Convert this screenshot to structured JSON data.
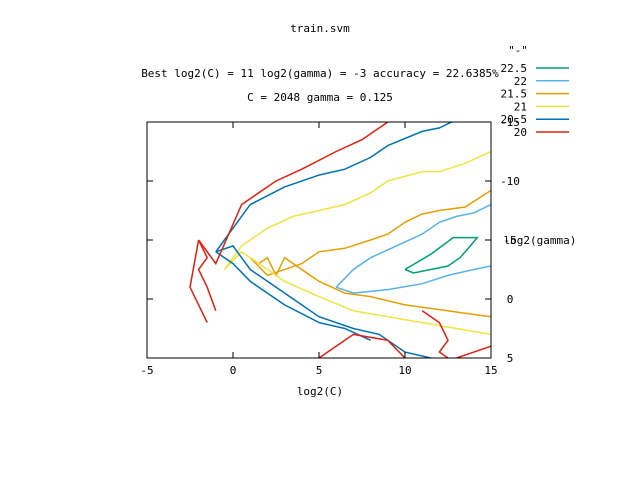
{
  "chart_data": {
    "type": "contour",
    "title": "train.svm",
    "subtitle_lines": [
      "Best log2(C) = 11  log2(gamma) = -3  accuracy = 22.6385%",
      "C = 2048  gamma = 0.125"
    ],
    "xlabel": "log2(C)",
    "ylabel": "log2(gamma)",
    "xlim": [
      -5,
      15
    ],
    "ylim": [
      -15,
      5
    ],
    "y_reversed": true,
    "x_ticks": [
      -5,
      0,
      5,
      10,
      15
    ],
    "x_tick_labels": [
      "-5",
      "0",
      "5",
      "10",
      "15"
    ],
    "y_ticks": [
      -15,
      -10,
      -5,
      0,
      5
    ],
    "y_tick_labels": [
      "-15",
      "-10",
      "-5",
      "0",
      "5"
    ],
    "legend_title": "\"-\"",
    "legend_position": "top-right",
    "grid": false,
    "series": [
      {
        "name": "22.5",
        "color": "#009e73",
        "paths": [
          [
            [
              10,
              -2.5
            ],
            [
              11.5,
              -3.8
            ],
            [
              12.8,
              -5.2
            ],
            [
              14.2,
              -5.2
            ],
            [
              13.8,
              -4.5
            ],
            [
              13.2,
              -3.5
            ],
            [
              12.5,
              -2.8
            ],
            [
              10.5,
              -2.2
            ],
            [
              10,
              -2.5
            ]
          ]
        ]
      },
      {
        "name": "22",
        "color": "#56b4e9",
        "paths": [
          [
            [
              6,
              -1
            ],
            [
              7,
              -2.5
            ],
            [
              8,
              -3.5
            ],
            [
              9.5,
              -4.5
            ],
            [
              11,
              -5.5
            ],
            [
              12,
              -6.5
            ],
            [
              13,
              -7
            ],
            [
              14,
              -7.3
            ],
            [
              15,
              -8
            ]
          ],
          [
            [
              6,
              -1
            ],
            [
              7,
              -0.5
            ],
            [
              9,
              -0.8
            ],
            [
              11,
              -1.3
            ],
            [
              12.5,
              -2
            ],
            [
              14,
              -2.5
            ],
            [
              15,
              -2.8
            ]
          ]
        ]
      },
      {
        "name": "21.5",
        "color": "#e69f00",
        "paths": [
          [
            [
              1,
              -3.5
            ],
            [
              2,
              -2
            ],
            [
              4,
              -3
            ],
            [
              5,
              -4
            ],
            [
              6.5,
              -4.3
            ],
            [
              8,
              -5
            ],
            [
              9,
              -5.5
            ],
            [
              10,
              -6.5
            ],
            [
              11,
              -7.2
            ],
            [
              12,
              -7.5
            ],
            [
              13.5,
              -7.8
            ],
            [
              15,
              -9.2
            ]
          ],
          [
            [
              1,
              -3.5
            ],
            [
              1.5,
              -3
            ],
            [
              2,
              -3.5
            ],
            [
              2.5,
              -2
            ],
            [
              3,
              -3.5
            ],
            [
              5,
              -1.5
            ],
            [
              6.5,
              -0.5
            ],
            [
              8,
              -0.2
            ],
            [
              10,
              0.5
            ],
            [
              12,
              0.9
            ],
            [
              13.5,
              1.2
            ],
            [
              15,
              1.5
            ]
          ]
        ]
      },
      {
        "name": "21",
        "color": "#f0e442",
        "paths": [
          [
            [
              -0.5,
              -2.5
            ],
            [
              0.5,
              -4.5
            ],
            [
              2,
              -6
            ],
            [
              3.5,
              -7
            ],
            [
              5,
              -7.5
            ],
            [
              6.5,
              -8
            ],
            [
              8,
              -9
            ],
            [
              9,
              -10
            ],
            [
              11,
              -10.8
            ],
            [
              12,
              -10.8
            ],
            [
              13.5,
              -11.5
            ],
            [
              15,
              -12.5
            ]
          ],
          [
            [
              -0.5,
              -2.5
            ],
            [
              0.5,
              -4
            ],
            [
              2,
              -2.5
            ],
            [
              3,
              -1.5
            ],
            [
              5,
              -0.2
            ],
            [
              7,
              1
            ],
            [
              9,
              1.5
            ],
            [
              11,
              2
            ],
            [
              13,
              2.5
            ],
            [
              15,
              3
            ]
          ]
        ]
      },
      {
        "name": "20.5",
        "color": "#0072b2",
        "paths": [
          [
            [
              -1,
              -4
            ],
            [
              -0.5,
              -5
            ],
            [
              0,
              -6
            ],
            [
              1,
              -8
            ],
            [
              3,
              -9.5
            ],
            [
              5,
              -10.5
            ],
            [
              6.5,
              -11
            ],
            [
              8,
              -12
            ],
            [
              9,
              -13
            ],
            [
              11,
              -14.2
            ],
            [
              12,
              -14.5
            ],
            [
              13,
              -15.2
            ],
            [
              15,
              -17
            ]
          ],
          [
            [
              -1,
              -4
            ],
            [
              0,
              -4.5
            ],
            [
              1,
              -2.5
            ],
            [
              2,
              -1.5
            ],
            [
              3.5,
              0
            ],
            [
              5,
              1.5
            ],
            [
              7,
              2.5
            ],
            [
              8.5,
              3
            ],
            [
              10,
              4.5
            ],
            [
              11.5,
              5
            ]
          ],
          [
            [
              -1,
              -4
            ],
            [
              0,
              -3
            ],
            [
              1,
              -1.5
            ],
            [
              2,
              -0.5
            ],
            [
              3,
              0.5
            ],
            [
              5,
              2
            ],
            [
              6.5,
              2.5
            ],
            [
              8,
              3.5
            ]
          ]
        ]
      },
      {
        "name": "20",
        "color": "#e51e10",
        "paths": [
          [
            [
              -2,
              -5
            ],
            [
              -1,
              -3
            ],
            [
              0.5,
              -8
            ],
            [
              2.5,
              -10
            ],
            [
              4,
              -11
            ],
            [
              6,
              -12.5
            ],
            [
              7.5,
              -13.5
            ],
            [
              9,
              -15
            ],
            [
              10.5,
              -16
            ],
            [
              12,
              -17
            ],
            [
              13.5,
              -18.5
            ],
            [
              15,
              -20
            ]
          ],
          [
            [
              -2,
              -5
            ],
            [
              -1.5,
              -3.5
            ],
            [
              -2,
              -2.5
            ],
            [
              -1.5,
              -1
            ],
            [
              -1,
              1
            ]
          ],
          [
            [
              -2,
              -5
            ],
            [
              -2.5,
              -1
            ],
            [
              -1.5,
              2
            ]
          ],
          [
            [
              5,
              5
            ],
            [
              7,
              3
            ],
            [
              9,
              3.5
            ],
            [
              10,
              5
            ]
          ],
          [
            [
              11,
              1
            ],
            [
              12,
              2
            ],
            [
              12.5,
              3.5
            ],
            [
              12,
              4.5
            ],
            [
              12.5,
              5
            ]
          ],
          [
            [
              13,
              5
            ],
            [
              14,
              4.5
            ],
            [
              15,
              4
            ]
          ]
        ]
      }
    ]
  }
}
